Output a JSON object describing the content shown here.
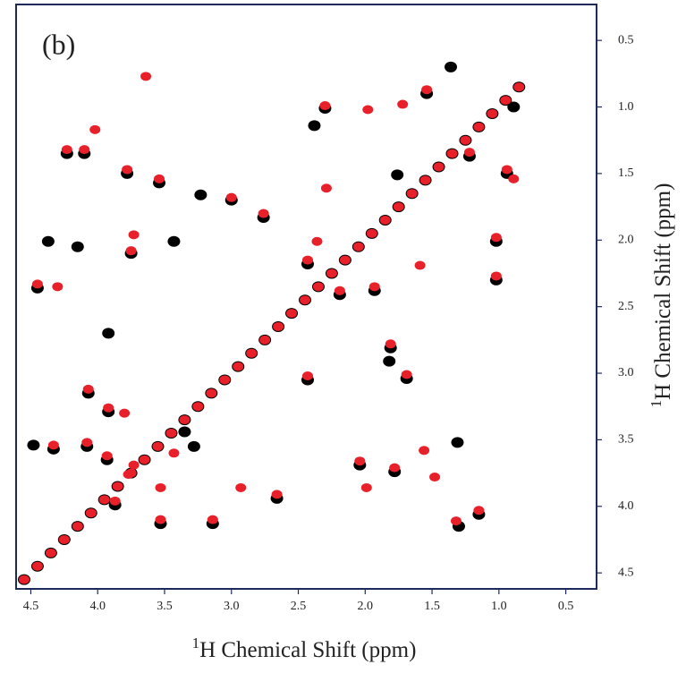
{
  "chart_data": {
    "type": "scatter",
    "annotation": "(b)",
    "x_label": {
      "sup": "1",
      "text": "H Chemical Shift (ppm)"
    },
    "y_label": {
      "sup": "1",
      "text": "H Chemical Shift (ppm)"
    },
    "xlim": [
      4.61,
      0.27
    ],
    "ylim": [
      0.23,
      4.62
    ],
    "xticks": [
      4.5,
      {
        "value": 4,
        "label": "4.0"
      },
      3.5,
      {
        "value": 3,
        "label": "3.0"
      },
      2.5,
      {
        "value": 2,
        "label": "2.0"
      },
      1.5,
      {
        "value": 1,
        "label": "1.0"
      },
      0.5
    ],
    "yticks": [
      0.5,
      {
        "value": 1,
        "label": "1.0"
      },
      1.5,
      {
        "value": 2,
        "label": "2.0"
      },
      2.5,
      {
        "value": 3,
        "label": "3.0"
      },
      3.5,
      {
        "value": 4,
        "label": "4.0"
      },
      4.5
    ],
    "series": [
      {
        "color": "#000000",
        "x": [
          4.55,
          4.45,
          4.35,
          4.25,
          4.15,
          4.05,
          3.95,
          3.85,
          3.75,
          3.65,
          3.55,
          3.45,
          3.35,
          3.25,
          3.15,
          3.05,
          2.95,
          2.85,
          2.75,
          2.65,
          2.55,
          2.45,
          2.35,
          2.25,
          2.15,
          2.05,
          1.95,
          1.85,
          1.75,
          1.65,
          1.55,
          1.45,
          1.35,
          1.25,
          1.15,
          1.05,
          0.95,
          0.85,
          4.23,
          4.1,
          3.78,
          3.75,
          3.54,
          3.0,
          2.76,
          2.3,
          1.54,
          2.43,
          2.19,
          1.93,
          1.81,
          1.69,
          2.04,
          1.78,
          1.3,
          1.15,
          1.02,
          0.94,
          1.22,
          4.07,
          3.92,
          4.33,
          4.08,
          3.53,
          3.14,
          2.66,
          4.45,
          3.93,
          3.87,
          2.43,
          1.02,
          4.37,
          4.15,
          3.43,
          3.23,
          1.31,
          4.48,
          1.36,
          1.82,
          3.92,
          1.76,
          0.89,
          3.35,
          3.28,
          2.38
        ],
        "values": [
          4.55,
          4.45,
          4.35,
          4.25,
          4.15,
          4.05,
          3.95,
          3.85,
          3.75,
          3.65,
          3.55,
          3.45,
          3.35,
          3.25,
          3.15,
          3.05,
          2.95,
          2.85,
          2.75,
          2.65,
          2.55,
          2.45,
          2.35,
          2.25,
          2.15,
          2.05,
          1.95,
          1.85,
          1.75,
          1.65,
          1.55,
          1.45,
          1.35,
          1.25,
          1.15,
          1.05,
          0.95,
          0.85,
          1.35,
          1.35,
          1.5,
          2.1,
          1.57,
          1.7,
          1.83,
          1.01,
          0.9,
          2.18,
          2.41,
          2.38,
          2.81,
          3.04,
          3.69,
          3.74,
          4.15,
          4.06,
          2.01,
          1.5,
          1.37,
          3.15,
          3.29,
          3.57,
          3.55,
          4.13,
          4.13,
          3.94,
          2.36,
          3.65,
          3.99,
          3.05,
          2.3,
          2.01,
          2.05,
          2.01,
          1.66,
          3.52,
          3.54,
          0.7,
          2.91,
          2.7,
          1.51,
          1.0,
          3.44,
          3.55,
          1.14
        ]
      },
      {
        "color": "#e8202a",
        "x": [
          4.55,
          4.45,
          4.35,
          4.25,
          4.15,
          4.05,
          3.95,
          3.85,
          3.75,
          3.65,
          3.55,
          3.45,
          3.35,
          3.25,
          3.15,
          3.05,
          2.95,
          2.85,
          2.75,
          2.65,
          2.55,
          2.45,
          2.35,
          2.25,
          2.15,
          2.05,
          1.95,
          1.85,
          1.75,
          1.65,
          1.55,
          1.45,
          1.35,
          1.25,
          1.15,
          1.05,
          0.95,
          0.85,
          3.64,
          4.23,
          4.1,
          4.02,
          3.78,
          3.73,
          3.75,
          3.54,
          3.0,
          2.76,
          2.3,
          1.98,
          1.72,
          1.54,
          2.29,
          2.43,
          2.36,
          2.19,
          1.93,
          1.59,
          1.81,
          1.69,
          1.56,
          1.48,
          2.04,
          1.99,
          1.78,
          1.32,
          1.15,
          1.02,
          0.94,
          0.89,
          1.22,
          4.07,
          3.92,
          3.8,
          4.33,
          4.08,
          3.77,
          3.53,
          3.53,
          3.14,
          2.66,
          2.93,
          3.43,
          4.45,
          4.3,
          3.93,
          3.73,
          3.87,
          2.43,
          1.02
        ],
        "values": [
          4.55,
          4.45,
          4.35,
          4.25,
          4.15,
          4.05,
          3.95,
          3.85,
          3.75,
          3.65,
          3.55,
          3.45,
          3.35,
          3.25,
          3.15,
          3.05,
          2.95,
          2.85,
          2.75,
          2.65,
          2.55,
          2.45,
          2.35,
          2.25,
          2.15,
          2.05,
          1.95,
          1.85,
          1.75,
          1.65,
          1.55,
          1.45,
          1.35,
          1.25,
          1.15,
          1.05,
          0.95,
          0.85,
          0.77,
          1.32,
          1.32,
          1.17,
          1.47,
          1.96,
          2.08,
          1.54,
          1.68,
          1.8,
          0.99,
          1.02,
          0.98,
          0.87,
          1.61,
          2.15,
          2.01,
          2.38,
          2.35,
          2.19,
          2.78,
          3.01,
          3.58,
          3.78,
          3.66,
          3.86,
          3.71,
          4.11,
          4.03,
          1.98,
          1.47,
          1.54,
          1.34,
          3.12,
          3.26,
          3.3,
          3.54,
          3.52,
          3.76,
          4.1,
          3.86,
          4.1,
          3.91,
          3.86,
          3.6,
          2.33,
          2.35,
          3.62,
          3.69,
          3.96,
          3.02,
          2.27
        ]
      }
    ]
  }
}
